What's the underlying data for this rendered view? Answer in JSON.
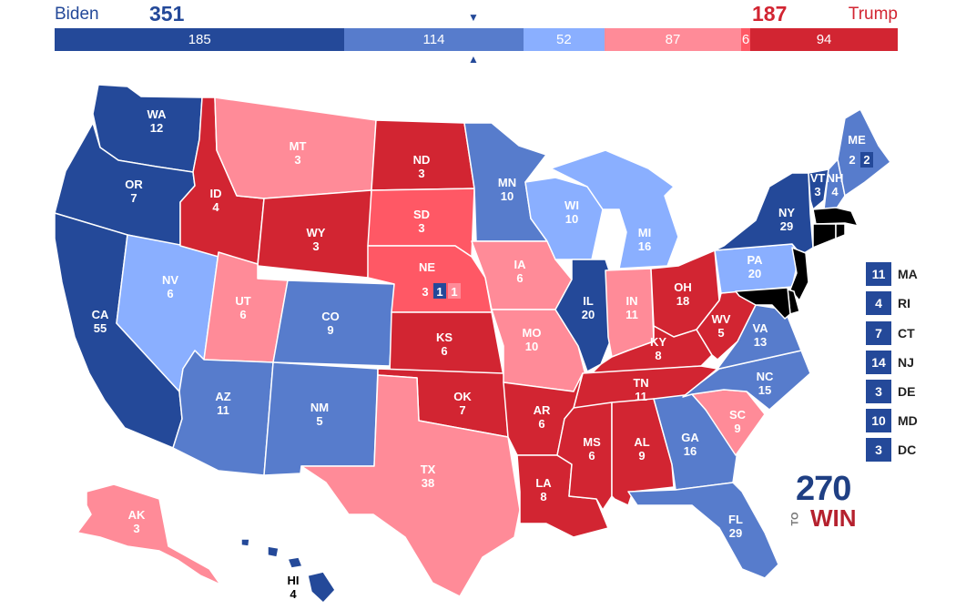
{
  "header": {
    "biden_label": "Biden",
    "trump_label": "Trump",
    "biden_total": "351",
    "trump_total": "187",
    "marker_top": "▼",
    "marker_bottom": "▲"
  },
  "colors": {
    "safe_d": "#244999",
    "likely_d": "#577ccc",
    "lean_d": "#8aafff",
    "toss_up": "#c0c0c0",
    "lean_r": "#ff8b98",
    "likely_r": "#ff5865",
    "safe_r": "#d22532"
  },
  "bar": [
    {
      "value": 185,
      "label": "185",
      "rating": "safe_d"
    },
    {
      "value": 114,
      "label": "114",
      "rating": "likely_d"
    },
    {
      "value": 52,
      "label": "52",
      "rating": "lean_d"
    },
    {
      "value": 87,
      "label": "87",
      "rating": "lean_r"
    },
    {
      "value": 6,
      "label": "6",
      "rating": "likely_r"
    },
    {
      "value": 94,
      "label": "94",
      "rating": "safe_r"
    }
  ],
  "states": {
    "WA": {
      "abbr": "WA",
      "ev": "12",
      "rating": "safe_d"
    },
    "OR": {
      "abbr": "OR",
      "ev": "7",
      "rating": "safe_d"
    },
    "CA": {
      "abbr": "CA",
      "ev": "55",
      "rating": "safe_d"
    },
    "ID": {
      "abbr": "ID",
      "ev": "4",
      "rating": "safe_r"
    },
    "NV": {
      "abbr": "NV",
      "ev": "6",
      "rating": "lean_d"
    },
    "MT": {
      "abbr": "MT",
      "ev": "3",
      "rating": "lean_r"
    },
    "WY": {
      "abbr": "WY",
      "ev": "3",
      "rating": "safe_r"
    },
    "UT": {
      "abbr": "UT",
      "ev": "6",
      "rating": "lean_r"
    },
    "AZ": {
      "abbr": "AZ",
      "ev": "11",
      "rating": "likely_d"
    },
    "CO": {
      "abbr": "CO",
      "ev": "9",
      "rating": "likely_d"
    },
    "NM": {
      "abbr": "NM",
      "ev": "5",
      "rating": "likely_d"
    },
    "ND": {
      "abbr": "ND",
      "ev": "3",
      "rating": "safe_r"
    },
    "SD": {
      "abbr": "SD",
      "ev": "3",
      "rating": "likely_r"
    },
    "NE": {
      "abbr": "NE",
      "ev": "3",
      "rating": "likely_r",
      "cd2": "1",
      "cd1": "1"
    },
    "KS": {
      "abbr": "KS",
      "ev": "6",
      "rating": "safe_r"
    },
    "OK": {
      "abbr": "OK",
      "ev": "7",
      "rating": "safe_r"
    },
    "TX": {
      "abbr": "TX",
      "ev": "38",
      "rating": "lean_r"
    },
    "MN": {
      "abbr": "MN",
      "ev": "10",
      "rating": "likely_d"
    },
    "IA": {
      "abbr": "IA",
      "ev": "6",
      "rating": "lean_r"
    },
    "MO": {
      "abbr": "MO",
      "ev": "10",
      "rating": "lean_r"
    },
    "AR": {
      "abbr": "AR",
      "ev": "6",
      "rating": "safe_r"
    },
    "LA": {
      "abbr": "LA",
      "ev": "8",
      "rating": "safe_r"
    },
    "WI": {
      "abbr": "WI",
      "ev": "10",
      "rating": "lean_d"
    },
    "IL": {
      "abbr": "IL",
      "ev": "20",
      "rating": "safe_d"
    },
    "MI": {
      "abbr": "MI",
      "ev": "16",
      "rating": "lean_d"
    },
    "IN": {
      "abbr": "IN",
      "ev": "11",
      "rating": "lean_r"
    },
    "OH": {
      "abbr": "OH",
      "ev": "18",
      "rating": "safe_r"
    },
    "KY": {
      "abbr": "KY",
      "ev": "8",
      "rating": "safe_r"
    },
    "TN": {
      "abbr": "TN",
      "ev": "11",
      "rating": "safe_r"
    },
    "MS": {
      "abbr": "MS",
      "ev": "6",
      "rating": "safe_r"
    },
    "AL": {
      "abbr": "AL",
      "ev": "9",
      "rating": "safe_r"
    },
    "GA": {
      "abbr": "GA",
      "ev": "16",
      "rating": "likely_d"
    },
    "FL": {
      "abbr": "FL",
      "ev": "29",
      "rating": "likely_d"
    },
    "SC": {
      "abbr": "SC",
      "ev": "9",
      "rating": "lean_r"
    },
    "NC": {
      "abbr": "NC",
      "ev": "15",
      "rating": "likely_d"
    },
    "VA": {
      "abbr": "VA",
      "ev": "13",
      "rating": "likely_d"
    },
    "WV": {
      "abbr": "WV",
      "ev": "5",
      "rating": "safe_r"
    },
    "PA": {
      "abbr": "PA",
      "ev": "20",
      "rating": "lean_d"
    },
    "NY": {
      "abbr": "NY",
      "ev": "29",
      "rating": "safe_d"
    },
    "VT": {
      "abbr": "VT",
      "ev": "3",
      "rating": "safe_d"
    },
    "NH": {
      "abbr": "NH",
      "ev": "4",
      "rating": "likely_d"
    },
    "ME": {
      "abbr": "ME",
      "ev": "2",
      "rating": "likely_d",
      "cd1": "2"
    },
    "AK": {
      "abbr": "AK",
      "ev": "3",
      "rating": "lean_r"
    },
    "HI": {
      "abbr": "HI",
      "ev": "4",
      "rating": "safe_d"
    }
  },
  "northeast": [
    {
      "abbr": "MA",
      "ev": "11"
    },
    {
      "abbr": "RI",
      "ev": "4"
    },
    {
      "abbr": "CT",
      "ev": "7"
    },
    {
      "abbr": "NJ",
      "ev": "14"
    },
    {
      "abbr": "DE",
      "ev": "3"
    },
    {
      "abbr": "MD",
      "ev": "10"
    },
    {
      "abbr": "DC",
      "ev": "3"
    }
  ],
  "logo": {
    "number": "270",
    "to": "TO",
    "win": "WIN"
  }
}
